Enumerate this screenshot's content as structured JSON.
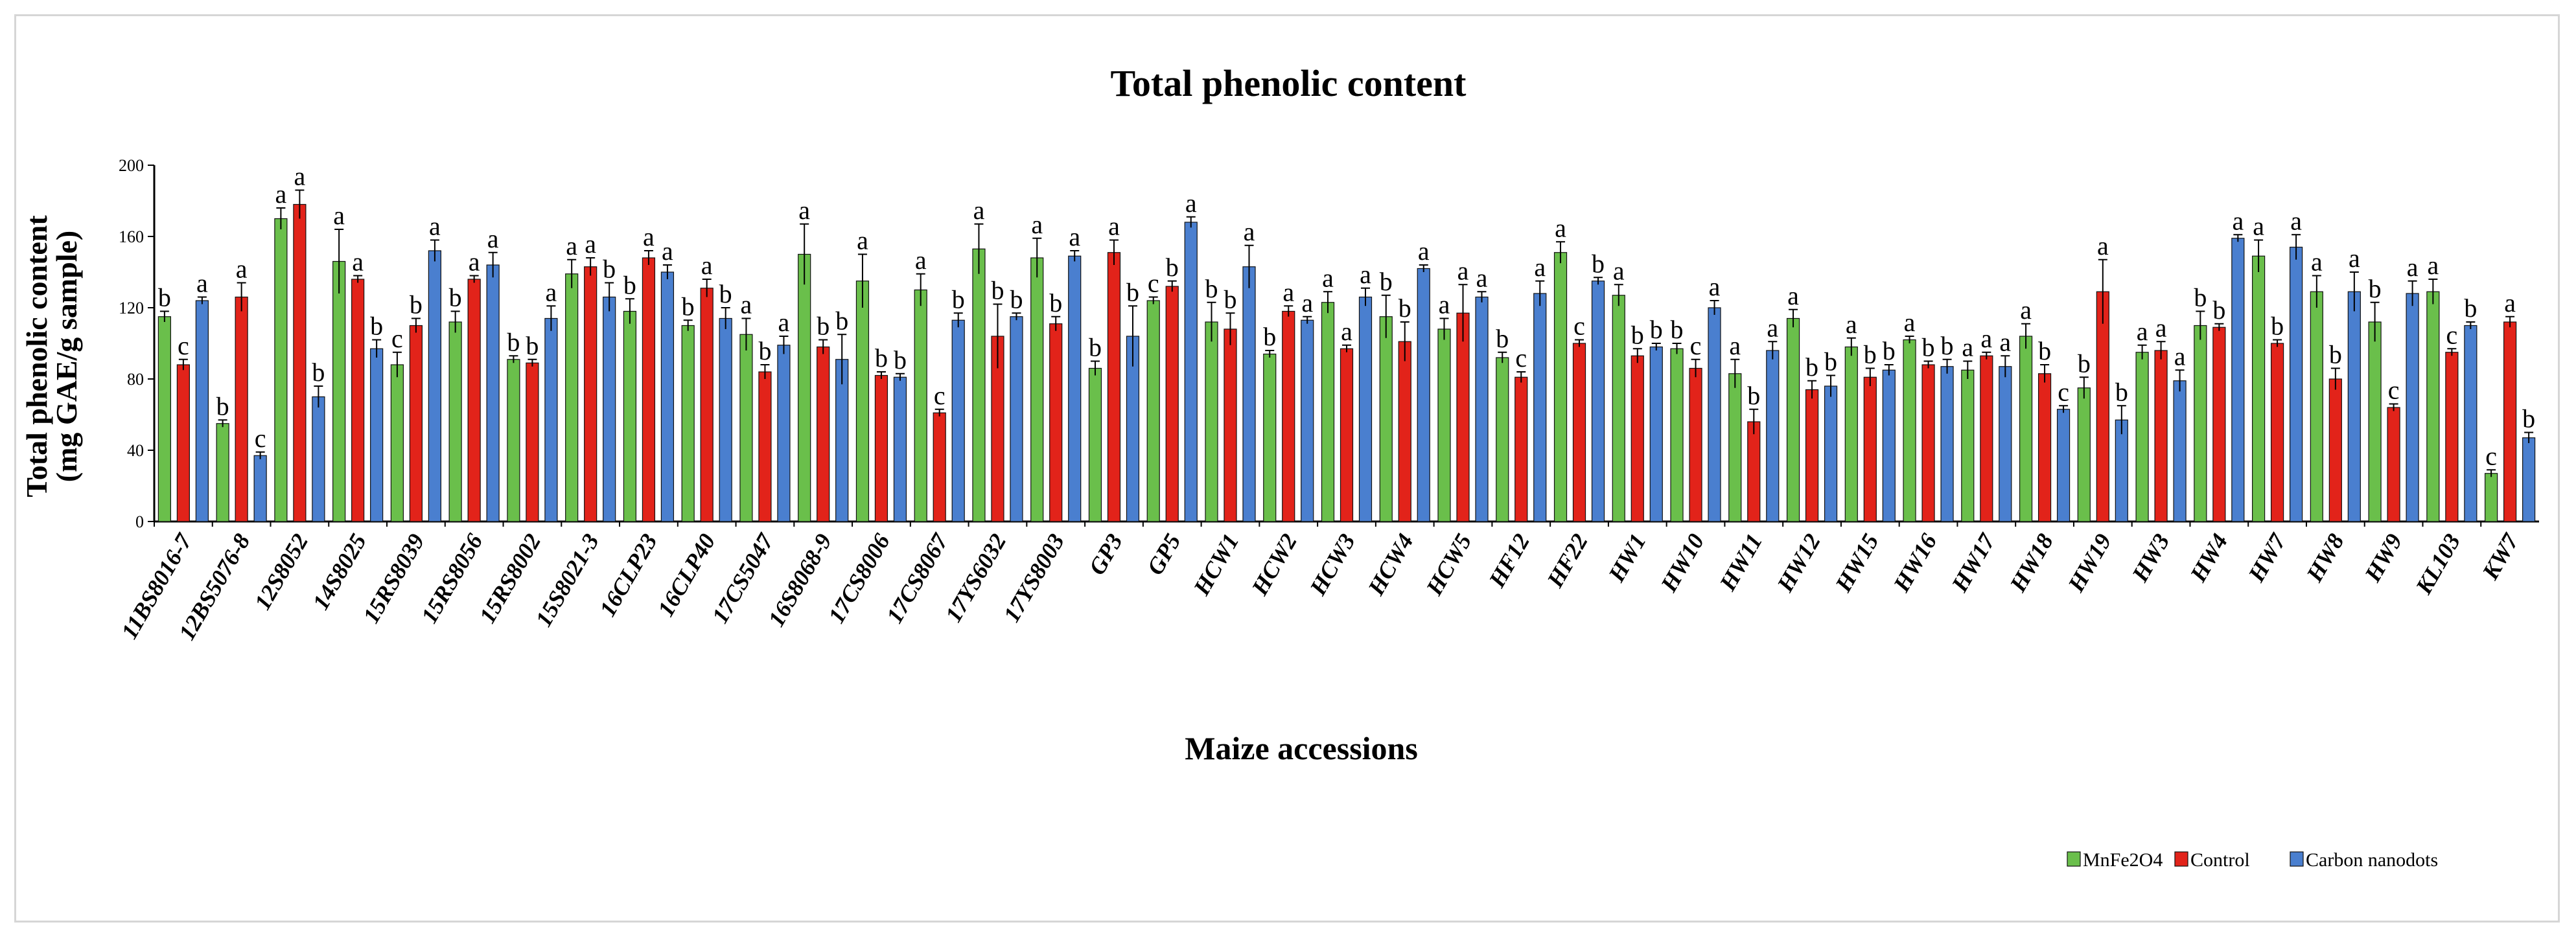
{
  "chart_data": {
    "type": "bar",
    "title": "Total phenolic content",
    "xlabel": "Maize accessions",
    "ylabel_line1": "Total  phenolic content",
    "ylabel_line2": "(mg GAE/g sample)",
    "ylim": [
      0,
      200
    ],
    "yticks": [
      "0",
      "40",
      "80",
      "120",
      "160",
      "200"
    ],
    "categories": [
      "11BS8016-7",
      "12BS5076-8",
      "12S8052",
      "14S8025",
      "15RS8039",
      "15RS8056",
      "15RS8002",
      "15S8021-3",
      "16CLP23",
      "16CLP40",
      "17CS5047",
      "16S8068-9",
      "17CS8006",
      "17CS8067",
      "17YS6032",
      "17YS8003",
      "GP3",
      "GP5",
      "HCW1",
      "HCW2",
      "HCW3",
      "HCW4",
      "HCW5",
      "HF12",
      "HF22",
      "HW1",
      "HW10",
      "HW11",
      "HW12",
      "HW15",
      "HW16",
      "HW17",
      "HW18",
      "HW19",
      "HW3",
      "HW4",
      "HW7",
      "HW8",
      "HW9",
      "KL103",
      "KW7"
    ],
    "series": [
      {
        "name": "MnFe2O4",
        "color": "#6abf4b",
        "values": [
          115,
          55,
          170,
          146,
          88,
          112,
          91,
          139,
          118,
          110,
          105,
          150,
          135,
          130,
          153,
          148,
          86,
          124,
          112,
          94,
          123,
          115,
          108,
          92,
          151,
          127,
          97,
          83,
          114,
          98,
          102,
          85,
          104,
          75,
          95,
          110,
          149,
          129,
          112,
          129,
          27
        ],
        "errors": [
          3,
          2,
          6,
          18,
          7,
          6,
          2,
          8,
          7,
          3,
          9,
          17,
          15,
          9,
          14,
          11,
          4,
          2,
          11,
          2,
          6,
          12,
          6,
          3,
          6,
          6,
          3,
          8,
          5,
          5,
          2,
          5,
          7,
          6,
          4,
          8,
          9,
          9,
          11,
          7,
          2
        ],
        "letters": [
          "b",
          "b",
          "a",
          "a",
          "c",
          "b",
          "b",
          "a",
          "b",
          "b",
          "a",
          "a",
          "a",
          "a",
          "a",
          "a",
          "b",
          "c",
          "b",
          "b",
          "a",
          "b",
          "a",
          "b",
          "a",
          "a",
          "b",
          "a",
          "a",
          "a",
          "a",
          "a",
          "a",
          "b",
          "a",
          "b",
          "a",
          "a",
          "b",
          "a",
          "c"
        ]
      },
      {
        "name": "Control",
        "color": "#e2231a",
        "values": [
          88,
          126,
          178,
          136,
          110,
          136,
          89,
          143,
          148,
          131,
          84,
          98,
          82,
          61,
          104,
          111,
          151,
          132,
          108,
          118,
          97,
          101,
          117,
          81,
          100,
          93,
          86,
          56,
          74,
          81,
          88,
          93,
          83,
          129,
          96,
          109,
          100,
          80,
          64,
          95,
          112
        ],
        "errors": [
          3,
          8,
          8,
          2,
          4,
          2,
          2,
          5,
          4,
          5,
          4,
          4,
          2,
          2,
          18,
          4,
          7,
          3,
          9,
          3,
          2,
          11,
          16,
          3,
          2,
          4,
          5,
          7,
          5,
          5,
          2,
          2,
          5,
          18,
          5,
          2,
          2,
          6,
          2,
          2,
          3
        ],
        "letters": [
          "c",
          "a",
          "a",
          "a",
          "b",
          "a",
          "b",
          "a",
          "a",
          "a",
          "b",
          "b",
          "b",
          "c",
          "b",
          "b",
          "a",
          "b",
          "b",
          "a",
          "a",
          "b",
          "a",
          "c",
          "c",
          "b",
          "c",
          "b",
          "b",
          "b",
          "b",
          "a",
          "b",
          "a",
          "a",
          "b",
          "b",
          "b",
          "c",
          "c",
          "a"
        ]
      },
      {
        "name": "Carbon nanodots",
        "color": "#4a7fcf",
        "values": [
          124,
          37,
          70,
          97,
          152,
          144,
          114,
          126,
          140,
          114,
          99,
          91,
          81,
          113,
          115,
          149,
          104,
          168,
          143,
          113,
          126,
          142,
          126,
          128,
          135,
          98,
          120,
          96,
          76,
          85,
          87,
          87,
          63,
          57,
          79,
          159,
          154,
          129,
          128,
          110,
          47
        ],
        "errors": [
          2,
          2,
          6,
          5,
          6,
          7,
          7,
          8,
          4,
          6,
          5,
          14,
          2,
          4,
          2,
          3,
          17,
          3,
          12,
          2,
          5,
          2,
          3,
          7,
          2,
          2,
          4,
          5,
          6,
          3,
          4,
          6,
          2,
          8,
          6,
          2,
          7,
          11,
          7,
          2,
          3
        ],
        "letters": [
          "a",
          "c",
          "b",
          "b",
          "a",
          "a",
          "a",
          "b",
          "a",
          "b",
          "a",
          "b",
          "b",
          "b",
          "b",
          "a",
          "b",
          "a",
          "a",
          "a",
          "a",
          "a",
          "a",
          "a",
          "b",
          "b",
          "a",
          "a",
          "b",
          "b",
          "b",
          "a",
          "c",
          "b",
          "a",
          "a",
          "a",
          "a",
          "a",
          "b",
          "b"
        ]
      }
    ],
    "legend": [
      "MnFe2O4",
      "Control",
      "Carbon nanodots"
    ],
    "legend_position": "bottom-right"
  }
}
